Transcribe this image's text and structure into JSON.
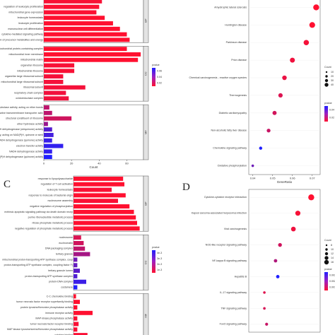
{
  "panel_letters": {
    "c": "C",
    "d": "D"
  },
  "chart_data": [
    {
      "id": "A",
      "type": "bar",
      "orientation": "horizontal",
      "xlabel": "Count",
      "xticks": [
        0,
        20,
        40,
        60
      ],
      "xlim": [
        0,
        72
      ],
      "legend": {
        "title": "pvalue",
        "ticks": [
          "0.06",
          "0.04",
          "0.02"
        ],
        "colors": [
          "#0000ff",
          "#ff0000"
        ]
      },
      "groups": [
        {
          "name": "BP",
          "bars": [
            {
              "label": "",
              "value": 42,
              "p": 0.003
            },
            {
              "label": "regulation of leukocyte proliferation",
              "value": 40,
              "p": 0.002
            },
            {
              "label": "mitochondrial gene expression",
              "value": 38,
              "p": 0.002
            },
            {
              "label": "leukocyte homeostasis",
              "value": 44,
              "p": 0.001
            },
            {
              "label": "leukocyte proliferation",
              "value": 50,
              "p": 0.001
            },
            {
              "label": "mononuclear cell differentiation",
              "value": 55,
              "p": 0.001
            },
            {
              "label": "cytokine-mediated signaling pathway",
              "value": 60,
              "p": 0.001
            },
            {
              "label": "generation of precursor metabolites and energy",
              "value": 62,
              "p": 0.001
            }
          ]
        },
        {
          "name": "CC",
          "bars": [
            {
              "label": "mitochondrial protein-containing complex",
              "value": 60,
              "p": 0.001
            },
            {
              "label": "mitochondrial inner membrane",
              "value": 70,
              "p": 0.001
            },
            {
              "label": "mitochondrial matrix",
              "value": 68,
              "p": 0.001
            },
            {
              "label": "organellar ribosome",
              "value": 22,
              "p": 0.003
            },
            {
              "label": "mitochondrial ribosome",
              "value": 22,
              "p": 0.003
            },
            {
              "label": "organellar large ribosomal subunit",
              "value": 14,
              "p": 0.004
            },
            {
              "label": "mitochondrial large ribosomal subunit",
              "value": 14,
              "p": 0.004
            },
            {
              "label": "ribosomal subunit",
              "value": 30,
              "p": 0.004
            },
            {
              "label": "respiratory chain complex",
              "value": 16,
              "p": 0.005
            },
            {
              "label": "oxidoreductase complex",
              "value": 18,
              "p": 0.005
            }
          ]
        },
        {
          "name": "MF",
          "bars": [
            {
              "label": "hydrolase activity, acting on ether bonds",
              "value": 4,
              "p": 0.02
            },
            {
              "label": "oxidoreduction-driven active transmembrane transporter activity",
              "value": 6,
              "p": 0.02
            },
            {
              "label": "structural constituent of ribosome",
              "value": 20,
              "p": 0.015
            },
            {
              "label": "ether hydrolase activity",
              "value": 3,
              "p": 0.03
            },
            {
              "label": "NADH dehydrogenase (ubiquinone) activity",
              "value": 6,
              "p": 0.05
            },
            {
              "label": "oxidoreductase activity, acting on NAD(P)H, quinone or similar compound as acceptor",
              "value": 7,
              "p": 0.055
            },
            {
              "label": "NADH dehydrogenase (quinone) activity",
              "value": 6,
              "p": 0.058
            },
            {
              "label": "electron transfer activity",
              "value": 14,
              "p": 0.06
            },
            {
              "label": "NADH dehydrogenase activity",
              "value": 6,
              "p": 0.06
            },
            {
              "label": "NAD(P)H dehydrogenase (quinone) activity",
              "value": 6,
              "p": 0.065
            }
          ]
        }
      ]
    },
    {
      "id": "B",
      "type": "scatter",
      "xlabel": "GeneRatio",
      "xticks": [
        "0.04",
        "0.05",
        "0.06",
        "0.07"
      ],
      "xlim": [
        0.038,
        0.074
      ],
      "legend_count": {
        "title": "Count",
        "sizes": [
          "10",
          "20",
          "30",
          "40"
        ]
      },
      "legend_p": {
        "title": "pvalue",
        "ticks": [
          "0.04",
          "0.02"
        ],
        "colors": [
          "#0000ff",
          "#ff0000"
        ]
      },
      "points": [
        {
          "label": "Amyotrophic lateral sclerosis",
          "x": 0.072,
          "count": 44,
          "p": 0.001
        },
        {
          "label": "Huntington disease",
          "x": 0.07,
          "count": 42,
          "p": 0.001
        },
        {
          "label": "Parkinson disease",
          "x": 0.067,
          "count": 38,
          "p": 0.003
        },
        {
          "label": "Prion disease",
          "x": 0.06,
          "count": 34,
          "p": 0.004
        },
        {
          "label": "Chemical carcinogenesis - reactive oxygen species",
          "x": 0.056,
          "count": 30,
          "p": 0.005
        },
        {
          "label": "Thermogenesis",
          "x": 0.054,
          "count": 28,
          "p": 0.008
        },
        {
          "label": "Diabetic cardiomyopathy",
          "x": 0.051,
          "count": 26,
          "p": 0.01
        },
        {
          "label": "Non-alcoholic fatty liver disease",
          "x": 0.048,
          "count": 22,
          "p": 0.012
        },
        {
          "label": "Chemokine signaling pathway",
          "x": 0.044,
          "count": 16,
          "p": 0.045
        },
        {
          "label": "Oxidative phosphorylation",
          "x": 0.04,
          "count": 10,
          "p": 0.03
        }
      ]
    },
    {
      "id": "C",
      "type": "bar",
      "orientation": "horizontal",
      "xlim": [
        0,
        110
      ],
      "legend": {
        "title": "pvalue",
        "ticks": [
          "4e-3",
          "3e-3",
          "2e-3",
          "1e-3"
        ],
        "colors": [
          "#0000ff",
          "#ff0000"
        ]
      },
      "groups": [
        {
          "name": "BP",
          "bars": [
            {
              "label": "response to lipopolysaccharide",
              "value": 78,
              "p": 0.0003
            },
            {
              "label": "regulation of T cell activation",
              "value": 80,
              "p": 0.0003
            },
            {
              "label": "leukocyte homeostasis",
              "value": 60,
              "p": 0.0004
            },
            {
              "label": "response to molecule of bacterial origin",
              "value": 82,
              "p": 0.0003
            },
            {
              "label": "nucleosome assembly",
              "value": 70,
              "p": 0.0004
            },
            {
              "label": "negative regulation of phosphorylation",
              "value": 88,
              "p": 0.0003
            },
            {
              "label": "extrinsic apoptotic signaling pathway via death domain receptors",
              "value": 95,
              "p": 0.0003
            },
            {
              "label": "purine ribonucleotide metabolic process",
              "value": 98,
              "p": 0.0003
            },
            {
              "label": "ribose phosphate metabolic process",
              "value": 100,
              "p": 0.0003
            },
            {
              "label": "negative regulation of phosphate metabolic process",
              "value": 104,
              "p": 0.0003
            }
          ]
        },
        {
          "name": "CC",
          "bars": [
            {
              "label": "nucleosome",
              "value": 12,
              "p": 0.001
            },
            {
              "label": "euchromatin",
              "value": 16,
              "p": 0.0012
            },
            {
              "label": "DNA packaging complex",
              "value": 18,
              "p": 0.0015
            },
            {
              "label": "tertiary granule",
              "value": 26,
              "p": 0.002
            },
            {
              "label": "mitochondrial proton-transporting ATP synthase complex, coupling factor F(o)",
              "value": 6,
              "p": 0.003
            },
            {
              "label": "proton-transporting ATP synthase complex, coupling factor F(o)",
              "value": 6,
              "p": 0.0032
            },
            {
              "label": "tertiary granule lumen",
              "value": 10,
              "p": 0.0034
            },
            {
              "label": "proton-transporting ATP synthase complex",
              "value": 6,
              "p": 0.0036
            },
            {
              "label": "protein-DNA complex",
              "value": 20,
              "p": 0.004
            },
            {
              "label": "costamere",
              "value": 6,
              "p": 0.0045
            }
          ]
        },
        {
          "name": "MF",
          "bars": [
            {
              "label": "C-C chemokine binding",
              "value": 4,
              "p": 0.0003
            },
            {
              "label": "tumor necrosis factor receptor superfamily binding",
              "value": 10,
              "p": 0.0003
            },
            {
              "label": "protein tyrosine/threonine phosphatase activity",
              "value": 6,
              "p": 0.0003
            },
            {
              "label": "immune receptor activity",
              "value": 30,
              "p": 0.0003
            },
            {
              "label": "MAP kinase phosphatase activity",
              "value": 6,
              "p": 0.0004
            },
            {
              "label": "tumor necrosis factor receptor binding",
              "value": 8,
              "p": 0.0004
            },
            {
              "label": "MAP kinase tyrosine/serine/threonine phosphatase activity",
              "value": 6,
              "p": 0.0004
            },
            {
              "label": "cytokine binding",
              "value": 22,
              "p": 0.0004
            }
          ]
        }
      ]
    },
    {
      "id": "D",
      "type": "scatter",
      "legend_count": {
        "title": "Count",
        "sizes": [
          "8",
          "10",
          "12",
          "14",
          "16"
        ]
      },
      "legend_p": {
        "title": "pvalue",
        "ticks": [
          "0.003",
          "0.002",
          "0.001"
        ],
        "colors": [
          "#0000ff",
          "#ff0000"
        ]
      },
      "points": [
        {
          "label": "Cytokine-cytokine receptor interaction",
          "x": 0.078,
          "count": 17,
          "p": 0.0002
        },
        {
          "label": "Kaposi sarcoma-associated herpesvirus infection",
          "x": 0.072,
          "count": 15,
          "p": 0.0003
        },
        {
          "label": "Viral carcinogenesis",
          "x": 0.07,
          "count": 14,
          "p": 0.0004
        },
        {
          "label": "NOD-like receptor signaling pathway",
          "x": 0.064,
          "count": 12,
          "p": 0.0008
        },
        {
          "label": "NF-kappa B signaling pathway",
          "x": 0.062,
          "count": 11,
          "p": 0.0012
        },
        {
          "label": "Hepatitis B",
          "x": 0.063,
          "count": 11,
          "p": 0.003
        },
        {
          "label": "IL-17 signaling pathway",
          "x": 0.057,
          "count": 9,
          "p": 0.0006
        },
        {
          "label": "TNF signaling pathway",
          "x": 0.057,
          "count": 9,
          "p": 0.0007
        },
        {
          "label": "FoxO signaling pathway",
          "x": 0.058,
          "count": 10,
          "p": 0.0009
        }
      ]
    }
  ]
}
